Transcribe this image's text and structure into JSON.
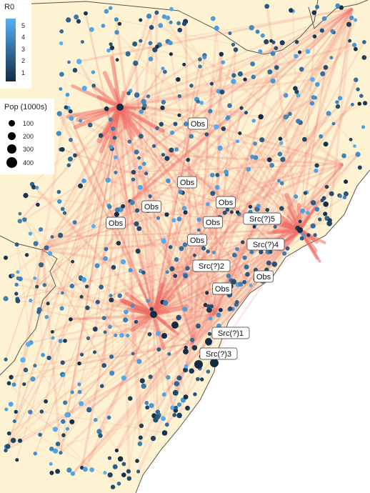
{
  "colors": {
    "land": "#fdf3d2",
    "ocean": "#ffffff",
    "border": "#555555",
    "flow": "#f0746e",
    "hub": "#ef6b64",
    "r0_low": "#132b43",
    "r0_high": "#56b1f7"
  },
  "legend_r0": {
    "title": "R0",
    "ticks": [
      "5",
      "4",
      "3",
      "2",
      "1"
    ]
  },
  "legend_pop": {
    "title": "Pop (1000s)",
    "items": [
      {
        "label": "100"
      },
      {
        "label": "200"
      },
      {
        "label": "300"
      },
      {
        "label": "400"
      }
    ]
  },
  "map_labels": [
    {
      "id": "obs-1",
      "text": "Obs"
    },
    {
      "id": "obs-2",
      "text": "Obs"
    },
    {
      "id": "obs-3",
      "text": "Obs"
    },
    {
      "id": "obs-4",
      "text": "Obs"
    },
    {
      "id": "obs-5",
      "text": "Obs"
    },
    {
      "id": "obs-6",
      "text": "Obs"
    },
    {
      "id": "obs-7",
      "text": "Obs"
    },
    {
      "id": "obs-8",
      "text": "Obs"
    },
    {
      "id": "obs-9",
      "text": "Obs"
    },
    {
      "id": "src-5",
      "text": "Src(?)5"
    },
    {
      "id": "src-4",
      "text": "Src(?)4"
    },
    {
      "id": "src-2",
      "text": "Src(?)2"
    },
    {
      "id": "src-1",
      "text": "Src(?)1"
    },
    {
      "id": "src-3",
      "text": "Src(?)3"
    }
  ]
}
